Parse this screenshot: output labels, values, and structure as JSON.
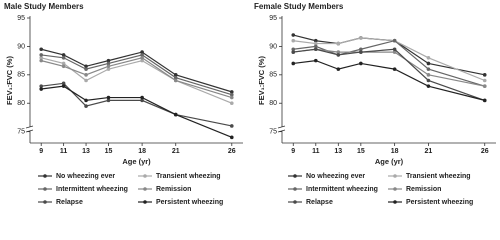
{
  "chart_data": [
    {
      "type": "line",
      "title": "Male Study Members",
      "xlabel": "Age (yr)",
      "ylabel": "FEV₁:FVC (%)",
      "x": [
        9,
        11,
        13,
        15,
        18,
        21,
        26
      ],
      "xlim": [
        8,
        27
      ],
      "xticks": [
        9,
        11,
        13,
        15,
        18,
        21,
        26
      ],
      "ylim": [
        73,
        95
      ],
      "yticks": [
        75,
        80,
        85,
        90,
        95
      ],
      "series": [
        {
          "name": "No wheezing ever",
          "color": "#333333",
          "values": [
            89.5,
            88.5,
            86.5,
            87.5,
            89,
            85,
            82
          ]
        },
        {
          "name": "Transient wheezing",
          "color": "#aaaaaa",
          "values": [
            88,
            87,
            84,
            86,
            87.5,
            84,
            80
          ]
        },
        {
          "name": "Intermittent wheezing",
          "color": "#666666",
          "values": [
            88.5,
            88,
            86,
            87,
            88.5,
            84.5,
            81.5
          ]
        },
        {
          "name": "Remission",
          "color": "#888888",
          "values": [
            87.5,
            86.5,
            85,
            86.5,
            88,
            84,
            81
          ]
        },
        {
          "name": "Relapse",
          "color": "#4a4a4a",
          "values": [
            83,
            83.5,
            79.5,
            80.5,
            80.5,
            78,
            76
          ]
        },
        {
          "name": "Persistent wheezing",
          "color": "#222222",
          "values": [
            82.5,
            83,
            80.5,
            81,
            81,
            78,
            74
          ]
        }
      ]
    },
    {
      "type": "line",
      "title": "Female Study Members",
      "xlabel": "Age (yr)",
      "ylabel": "FEV₁:FVC (%)",
      "x": [
        9,
        11,
        13,
        15,
        18,
        21,
        26
      ],
      "xlim": [
        8,
        27
      ],
      "xticks": [
        9,
        11,
        13,
        15,
        18,
        21,
        26
      ],
      "ylim": [
        73,
        95
      ],
      "yticks": [
        75,
        80,
        85,
        90,
        95
      ],
      "series": [
        {
          "name": "No wheezing ever",
          "color": "#333333",
          "values": [
            92,
            91,
            90.5,
            91.5,
            91,
            87,
            85
          ]
        },
        {
          "name": "Transient wheezing",
          "color": "#aaaaaa",
          "values": [
            91,
            90.5,
            90.5,
            91.5,
            91,
            88,
            84
          ]
        },
        {
          "name": "Intermittent wheezing",
          "color": "#666666",
          "values": [
            89.5,
            90,
            88.5,
            89.5,
            91,
            86,
            83
          ]
        },
        {
          "name": "Remission",
          "color": "#888888",
          "values": [
            89,
            89.5,
            89,
            89,
            89,
            85,
            83
          ]
        },
        {
          "name": "Relapse",
          "color": "#4a4a4a",
          "values": [
            89,
            89.5,
            88.5,
            89,
            89.5,
            84,
            80.5
          ]
        },
        {
          "name": "Persistent wheezing",
          "color": "#222222",
          "values": [
            87,
            87.5,
            86,
            87,
            86,
            83,
            80.5
          ]
        }
      ]
    }
  ]
}
